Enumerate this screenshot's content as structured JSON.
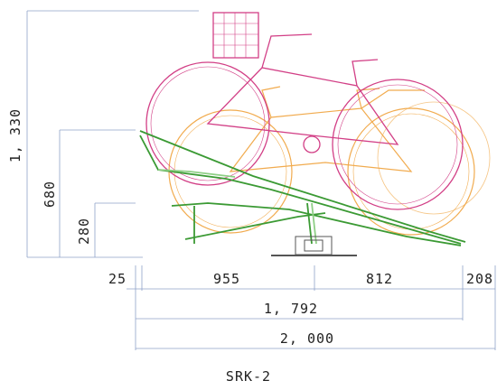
{
  "dimensions": {
    "height_total": "1, 330",
    "height_upper": "680",
    "height_lower": "280",
    "offset_left": "25",
    "span_front": "955",
    "span_rear": "812",
    "offset_right": "208",
    "span_main": "1, 792",
    "span_total": "2, 000"
  },
  "caption": "SRK-2",
  "colors": {
    "dimension_line": "#8fa3c8",
    "upper_bike": "#d23f86",
    "lower_bike": "#f0a33c",
    "rack": "#3b9a34",
    "rack_light": "#8fcf86",
    "base": "#555555"
  }
}
